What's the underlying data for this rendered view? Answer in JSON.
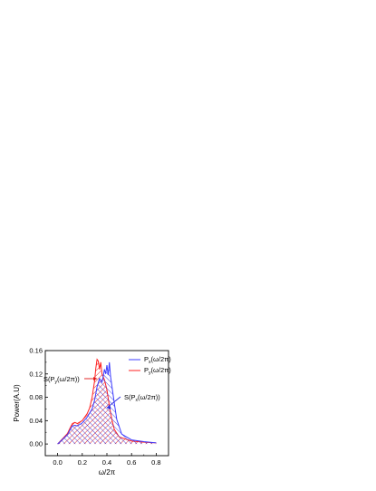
{
  "chart_data": {
    "type": "area",
    "title": "",
    "xlabel": "ω/2π",
    "ylabel": "Power(A.U)",
    "xlim": [
      -0.1,
      0.9
    ],
    "ylim": [
      -0.02,
      0.16
    ],
    "xticks": [
      "0.0",
      "0.2",
      "0.4",
      "0.6",
      "0.8"
    ],
    "yticks": [
      "0.00",
      "0.04",
      "0.08",
      "0.12",
      "0.16"
    ],
    "grid": false,
    "legend_placement": "top-right",
    "series": [
      {
        "name": "Pₓ(ω/2π)",
        "color": "#3c3cff",
        "hatch_color": "#2a2ae0",
        "x": [
          0.0,
          0.04,
          0.08,
          0.1,
          0.12,
          0.14,
          0.16,
          0.2,
          0.24,
          0.28,
          0.3,
          0.32,
          0.34,
          0.36,
          0.37,
          0.38,
          0.39,
          0.4,
          0.41,
          0.42,
          0.43,
          0.44,
          0.46,
          0.48,
          0.52,
          0.6,
          0.7,
          0.8
        ],
        "values": [
          0.0,
          0.008,
          0.016,
          0.024,
          0.031,
          0.032,
          0.031,
          0.036,
          0.046,
          0.06,
          0.075,
          0.098,
          0.112,
          0.106,
          0.116,
          0.128,
          0.12,
          0.135,
          0.118,
          0.14,
          0.115,
          0.1,
          0.07,
          0.042,
          0.017,
          0.007,
          0.004,
          0.002
        ]
      },
      {
        "name": "Pᵧ(ω/2π)",
        "color": "#ff2020",
        "hatch_color": "#e01010",
        "x": [
          0.0,
          0.04,
          0.08,
          0.1,
          0.12,
          0.14,
          0.16,
          0.2,
          0.24,
          0.26,
          0.28,
          0.3,
          0.31,
          0.32,
          0.33,
          0.34,
          0.35,
          0.36,
          0.38,
          0.4,
          0.42,
          0.44,
          0.46,
          0.5,
          0.6,
          0.7,
          0.8
        ],
        "values": [
          0.0,
          0.009,
          0.018,
          0.027,
          0.035,
          0.037,
          0.035,
          0.04,
          0.052,
          0.062,
          0.08,
          0.108,
          0.13,
          0.145,
          0.142,
          0.128,
          0.14,
          0.12,
          0.11,
          0.093,
          0.065,
          0.042,
          0.025,
          0.012,
          0.005,
          0.003,
          0.002
        ]
      }
    ],
    "legend": [
      {
        "main": "P",
        "sub": "x",
        "rest": "(ω/2π)"
      },
      {
        "main": "P",
        "sub": "y",
        "rest": "(ω/2π)"
      }
    ],
    "annotations": [
      {
        "main": "S(P",
        "sub": "y",
        "rest": "(ω/2π))",
        "side": "left",
        "target_x": 0.32,
        "target_y": 0.112,
        "color": "#e01010"
      },
      {
        "main": "S(P",
        "sub": "x",
        "rest": "(ω/2π))",
        "side": "right",
        "target_x": 0.4,
        "target_y": 0.062,
        "color": "#2a2ae0"
      }
    ]
  }
}
